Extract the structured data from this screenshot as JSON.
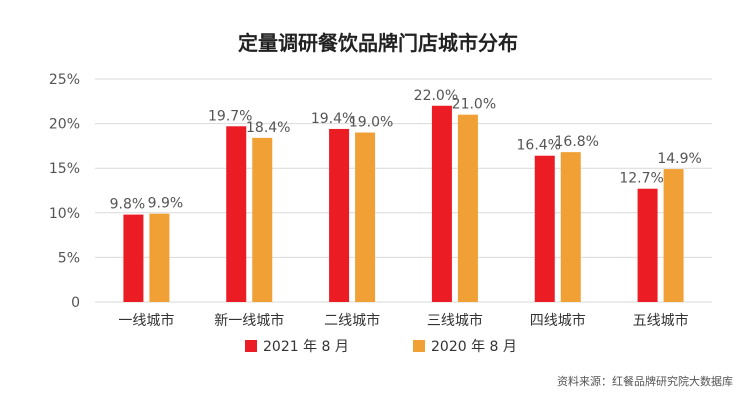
{
  "chart_data": {
    "type": "bar",
    "title": "定量调研餐饮品牌门店城市分布",
    "categories": [
      "一线城市",
      "新一线城市",
      "二线城市",
      "三线城市",
      "四线城市",
      "五线城市"
    ],
    "series": [
      {
        "name": "2021 年 8 月",
        "color": "#ec1c24",
        "values": [
          9.8,
          19.7,
          19.4,
          22.0,
          16.4,
          12.7
        ],
        "labels": [
          "9.8%",
          "19.7%",
          "19.4%",
          "22.0%",
          "16.4%",
          "12.7%"
        ]
      },
      {
        "name": "2020 年 8 月",
        "color": "#f0a035",
        "values": [
          9.9,
          18.4,
          19.0,
          21.0,
          16.8,
          14.9
        ],
        "labels": [
          "9.9%",
          "18.4%",
          "19.0%",
          "21.0%",
          "16.8%",
          "14.9%"
        ]
      }
    ],
    "yticks": [
      "0",
      "5%",
      "10%",
      "15%",
      "20%",
      "25%"
    ],
    "ylim": [
      0,
      25
    ],
    "grid": true,
    "legend": "bottom-center",
    "source": "资料来源：红餐品牌研究院大数据库"
  }
}
